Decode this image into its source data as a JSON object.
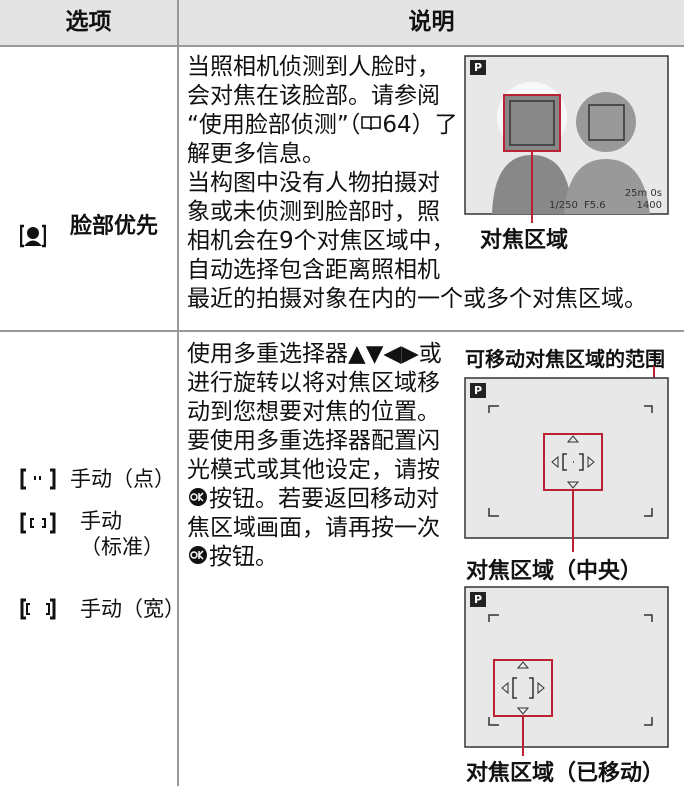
{
  "table": {
    "headers": [
      "选项",
      "说明"
    ],
    "rows": [
      {
        "option": "脸部优先",
        "description": [
          "当照相机侦测到人脸时，会对焦在该脸部。请参阅“使用脸部侦测”（",
          "64）了解更多信息。",
          "当构图中没有人物拍摄对象或未侦测到脸部时，照相机会在9个对焦区域中，自动选择包含距离照相机最近的拍摄对象在内的一个或多个对焦区域。"
        ],
        "screen": {
          "mode": "P",
          "shutter": "1/250",
          "aperture": "F5.6",
          "remaining": "25m 0s",
          "shots": "1400"
        },
        "caption": "对焦区域"
      },
      {
        "options": [
          "手动（点）",
          "手动（标准）",
          "手动（宽）"
        ],
        "description": [
          "使用多重选择器▲▼◀▶或进行旋转以将对焦区域移动到您想要对焦的位置。要使用多重选择器配置闪光模式或其他设定，请按",
          "按钮。若要返回移动对焦区域画面，请再按一次",
          "按钮。"
        ],
        "range_label": "可移动对焦区域的范围",
        "captions": [
          "对焦区域（中央）",
          "对焦区域（已移动）"
        ]
      }
    ]
  }
}
